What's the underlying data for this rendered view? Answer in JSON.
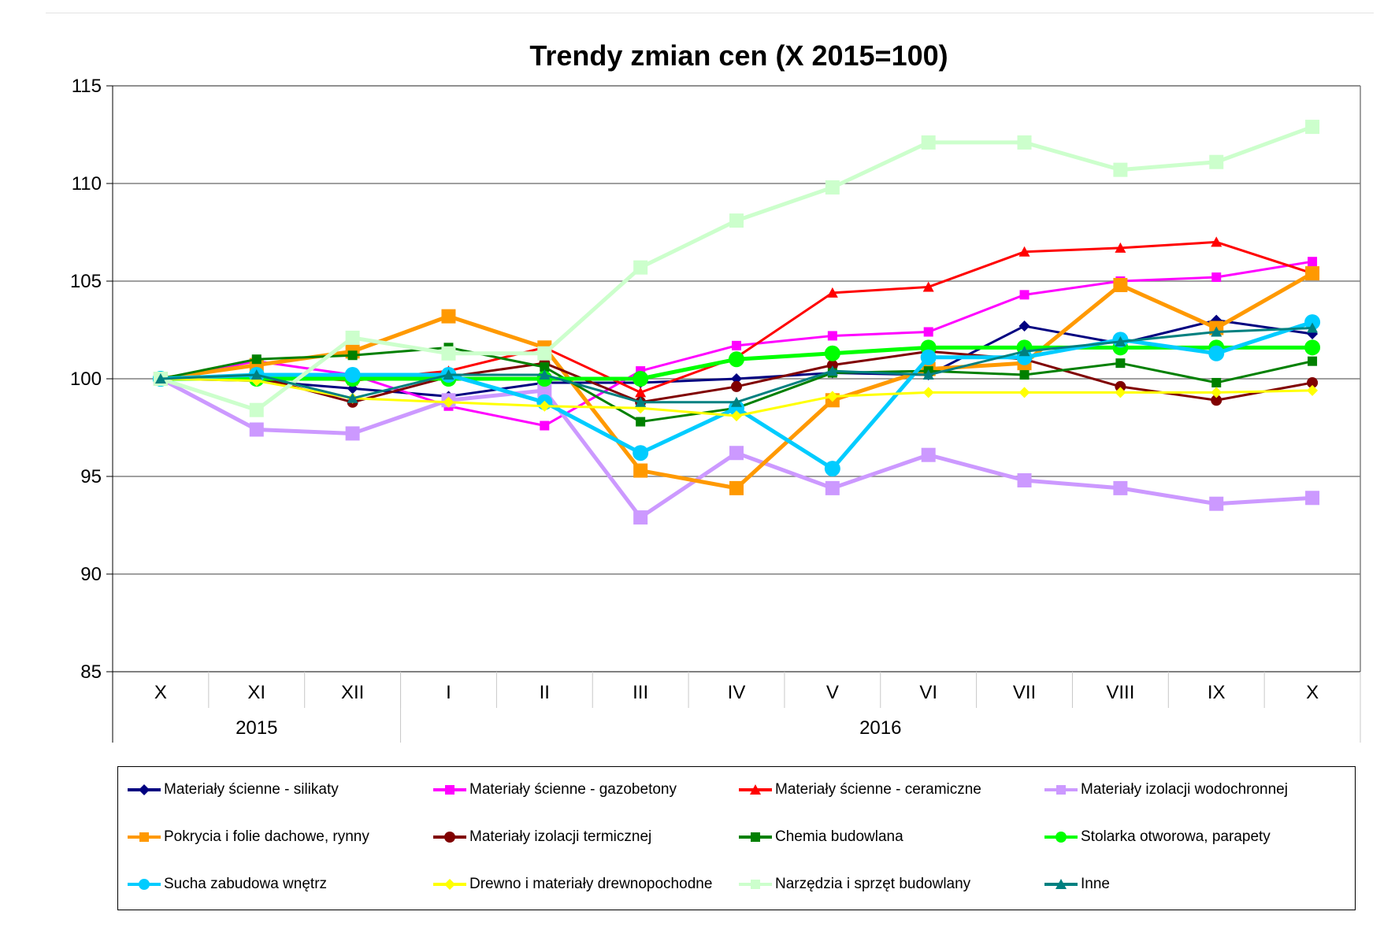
{
  "chart_data": {
    "type": "line",
    "title": "Trendy zmian cen (X 2015=100)",
    "xlabel": "",
    "ylabel": "",
    "categories": [
      "X",
      "XI",
      "XII",
      "I",
      "II",
      "III",
      "IV",
      "V",
      "VI",
      "VII",
      "VIII",
      "IX",
      "X"
    ],
    "year_groups": [
      {
        "label": "2015",
        "count": 3
      },
      {
        "label": "2016",
        "count": 10
      }
    ],
    "ylim": [
      85,
      115
    ],
    "yticks": [
      85,
      90,
      95,
      100,
      105,
      110,
      115
    ],
    "grid": true,
    "legend_position": "bottom",
    "series": [
      {
        "name": "Materiały ścienne - silikaty",
        "color": "#000080",
        "marker": "diamond",
        "values": [
          100,
          99.9,
          99.5,
          99.1,
          99.8,
          99.8,
          100.0,
          100.3,
          100.2,
          102.7,
          101.8,
          103.0,
          102.3
        ]
      },
      {
        "name": "Materiały ścienne - gazobetony",
        "color": "#ff00ff",
        "marker": "square",
        "values": [
          100,
          100.9,
          100.2,
          98.6,
          97.6,
          100.4,
          101.7,
          102.2,
          102.4,
          104.3,
          105.0,
          105.2,
          106.0
        ]
      },
      {
        "name": "Materiały ścienne - ceramiczne",
        "color": "#ff0000",
        "marker": "triangle",
        "values": [
          100,
          100.2,
          99.9,
          100.4,
          101.6,
          99.3,
          101.1,
          104.4,
          104.7,
          106.5,
          106.7,
          107.0,
          105.4
        ]
      },
      {
        "name": "Materiały izolacji wodochronnej",
        "color": "#cc99ff",
        "marker": "square",
        "values": [
          100,
          97.4,
          97.2,
          98.9,
          99.4,
          92.9,
          96.2,
          94.4,
          96.1,
          94.8,
          94.4,
          93.6,
          93.9
        ]
      },
      {
        "name": "Pokrycia i folie dachowe, rynny",
        "color": "#ff9900",
        "marker": "square",
        "values": [
          100,
          100.7,
          101.4,
          103.2,
          101.6,
          95.3,
          94.4,
          98.9,
          100.5,
          100.8,
          104.8,
          102.6,
          105.4
        ]
      },
      {
        "name": "Materiały izolacji termicznej",
        "color": "#800000",
        "marker": "circle",
        "values": [
          100,
          100.1,
          98.8,
          100.1,
          100.8,
          98.8,
          99.6,
          100.7,
          101.4,
          101.0,
          99.6,
          98.9,
          99.8
        ]
      },
      {
        "name": "Chemia budowlana",
        "color": "#008000",
        "marker": "square",
        "values": [
          100,
          101.0,
          101.2,
          101.6,
          100.6,
          97.8,
          98.5,
          100.3,
          100.4,
          100.2,
          100.8,
          99.8,
          100.9
        ]
      },
      {
        "name": "Stolarka otworowa, parapety",
        "color": "#00ff00",
        "marker": "circle",
        "values": [
          100,
          100.0,
          100.0,
          100.0,
          100.0,
          100.0,
          101.0,
          101.3,
          101.6,
          101.6,
          101.6,
          101.6,
          101.6
        ]
      },
      {
        "name": "Sucha zabudowa wnętrz",
        "color": "#00ccff",
        "marker": "circle",
        "values": [
          100,
          100.2,
          100.2,
          100.2,
          98.8,
          96.2,
          98.5,
          95.4,
          101.1,
          101.1,
          102.0,
          101.3,
          102.9
        ]
      },
      {
        "name": "Drewno i materiały drewnopochodne",
        "color": "#ffff00",
        "marker": "diamond",
        "values": [
          100,
          99.9,
          99.0,
          98.8,
          98.6,
          98.5,
          98.1,
          99.1,
          99.3,
          99.3,
          99.3,
          99.3,
          99.4
        ]
      },
      {
        "name": "Narzędzia i sprzęt budowlany",
        "color": "#ccffcc",
        "marker": "square",
        "values": [
          100,
          98.4,
          102.1,
          101.3,
          101.3,
          105.7,
          108.1,
          109.8,
          112.1,
          112.1,
          110.7,
          111.1,
          112.9
        ]
      },
      {
        "name": "Inne",
        "color": "#008080",
        "marker": "triangle",
        "values": [
          100,
          100.2,
          99.0,
          100.2,
          100.2,
          98.8,
          98.8,
          100.4,
          100.2,
          101.4,
          101.9,
          102.4,
          102.6
        ]
      }
    ]
  }
}
